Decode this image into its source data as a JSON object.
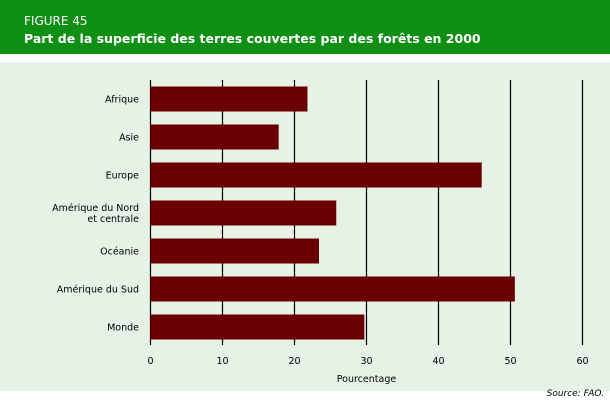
{
  "header": {
    "figure_label": "FIGURE 45",
    "title": "Part de la superficie des terres couvertes par des forêts en 2000"
  },
  "source": "Source: FAO.",
  "chart_data": {
    "type": "bar",
    "orientation": "horizontal",
    "title": "Part de la superficie des terres couvertes par des forêts en 2000",
    "categories": [
      "Afrique",
      "Asie",
      "Europe",
      "Amérique du Nord\net centrale",
      "Océanie",
      "Amérique du Sud",
      "Monde"
    ],
    "values": [
      21.8,
      17.8,
      46.0,
      25.8,
      23.4,
      50.6,
      29.7
    ],
    "xlabel": "Pourcentage",
    "ylabel": "",
    "xlim": [
      0,
      60
    ],
    "ticks": [
      0,
      10,
      20,
      30,
      40,
      50,
      60
    ],
    "grid": true,
    "bar_color": "#6b0000"
  }
}
